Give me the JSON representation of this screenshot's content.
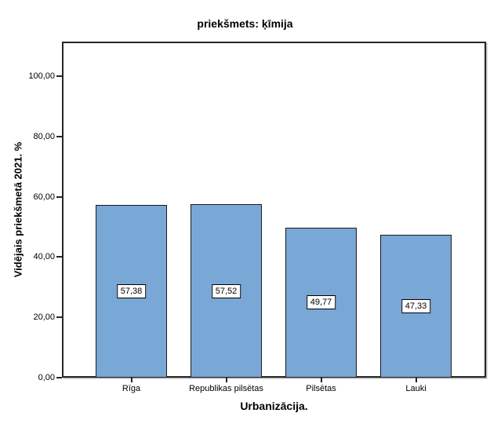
{
  "chart_data": {
    "type": "bar",
    "title": "priekšmets: ķīmija",
    "xlabel": "Urbanizācija.",
    "ylabel": "Vidējais priekšmetā 2021. %",
    "categories": [
      "Rīga",
      "Republikas pilsētas",
      "Pilsētas",
      "Lauki"
    ],
    "values": [
      57.38,
      57.52,
      49.77,
      47.33
    ],
    "value_labels": [
      "57,38",
      "57,52",
      "49,77",
      "47,33"
    ],
    "value_label_style": "boxed-at-bar-center",
    "yticks": [
      {
        "value": 0,
        "label": "0,00"
      },
      {
        "value": 20,
        "label": "20,00"
      },
      {
        "value": 40,
        "label": "40,00"
      },
      {
        "value": 60,
        "label": "60,00"
      },
      {
        "value": 80,
        "label": "80,00"
      },
      {
        "value": 100,
        "label": "100,00"
      }
    ],
    "ylim": [
      0,
      111.5
    ],
    "grid": false,
    "legend": null
  },
  "colors": {
    "bar_fill": "#79A7D6",
    "bar_border": "#1A1A1A",
    "axis": "#262626",
    "text": "#000000",
    "background": "#FFFFFF",
    "value_box_bg": "#FFFFFF",
    "value_box_border": "#000000"
  }
}
